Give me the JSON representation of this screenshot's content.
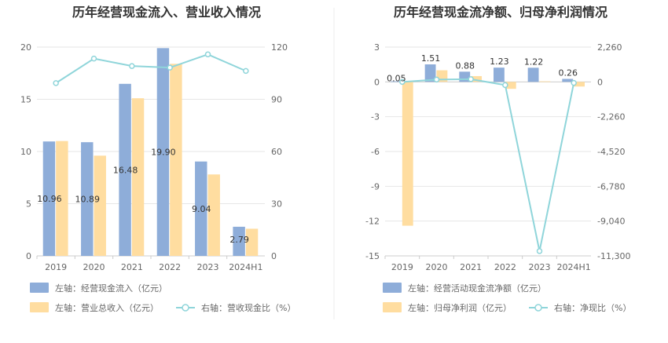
{
  "chart_data": [
    {
      "type": "bar",
      "title": "历年经营现金流入、营业收入情况",
      "categories": [
        "2019",
        "2020",
        "2021",
        "2022",
        "2023",
        "2024H1"
      ],
      "left_axis": {
        "ticks": [
          "0",
          "5",
          "10",
          "15",
          "20"
        ],
        "range": [
          0,
          20
        ]
      },
      "right_axis": {
        "ticks": [
          "0",
          "30",
          "60",
          "90",
          "120"
        ],
        "range": [
          0,
          120
        ]
      },
      "series": [
        {
          "name": "左轴：经营现金流入（亿元）",
          "axis": "left",
          "type": "bar",
          "color": "#8EADD9",
          "values": [
            10.96,
            10.89,
            16.48,
            19.9,
            9.04,
            2.79
          ],
          "labels": [
            "10.96",
            "10.89",
            "16.48",
            "19.90",
            "9.04",
            "2.79"
          ]
        },
        {
          "name": "左轴：营业总收入（亿元）",
          "axis": "left",
          "type": "bar",
          "color": "#FFDDA0",
          "values": [
            11.0,
            9.6,
            15.1,
            18.4,
            7.8,
            2.6
          ]
        },
        {
          "name": "右轴：营收现金比（%）",
          "axis": "right",
          "type": "line",
          "color": "#8FD5DA",
          "values": [
            99.3,
            113.4,
            109.1,
            108.2,
            115.8,
            106.3
          ]
        }
      ],
      "grid": true,
      "legend": "bottom"
    },
    {
      "type": "bar",
      "title": "历年经营现金流净额、归母净利润情况",
      "categories": [
        "2019",
        "2020",
        "2021",
        "2022",
        "2023",
        "2024H1"
      ],
      "left_axis": {
        "ticks": [
          "3",
          "0",
          "-3",
          "-6",
          "-9",
          "-12",
          "-15"
        ],
        "range": [
          -15,
          3
        ]
      },
      "right_axis": {
        "ticks": [
          "2,260",
          "0",
          "-2,260",
          "-4,520",
          "-6,780",
          "-9,040",
          "-11,300"
        ],
        "range": [
          -11300,
          2260
        ]
      },
      "series": [
        {
          "name": "左轴：经营活动现金流净额（亿元）",
          "axis": "left",
          "type": "bar",
          "color": "#8EADD9",
          "values": [
            0.05,
            1.51,
            0.88,
            1.23,
            1.22,
            0.26
          ],
          "labels": [
            "0.05",
            "1.51",
            "0.88",
            "1.23",
            "1.22",
            "0.26"
          ]
        },
        {
          "name": "左轴：归母净利润（亿元）",
          "axis": "left",
          "type": "bar",
          "color": "#FFDDA0",
          "values": [
            -12.4,
            1.0,
            0.5,
            -0.6,
            0.05,
            -0.4
          ]
        },
        {
          "name": "右轴：净现比（%）",
          "axis": "right",
          "type": "line",
          "color": "#8FD5DA",
          "values": [
            -0.4,
            151,
            176,
            -205,
            -10990,
            -65
          ]
        }
      ],
      "grid": true,
      "legend": "bottom"
    }
  ]
}
